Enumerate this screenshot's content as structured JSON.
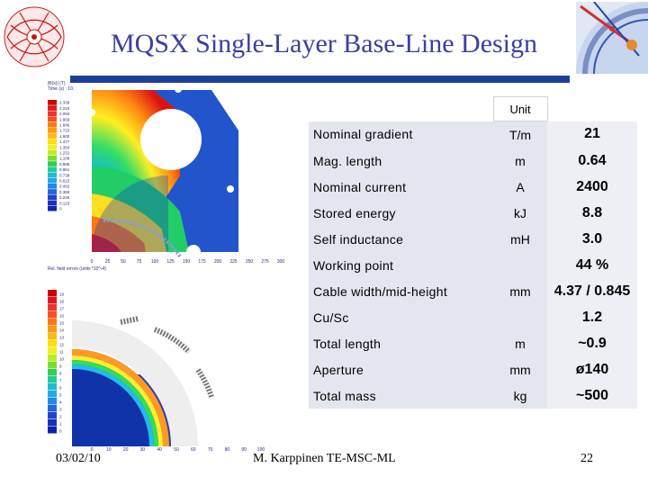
{
  "slide": {
    "title": "MQSX Single-Layer Base-Line Design"
  },
  "figure_top": {
    "legend_title": "|B(x)| (T)",
    "legend_subtitle": "Time (s) : 10.",
    "legend_values": [
      "2.339",
      "2.216",
      "2.093",
      "1.969",
      "1.846",
      "1.723",
      "1.600",
      "1.477",
      "1.354",
      "1.231",
      "1.108",
      "0.985",
      "0.861",
      "0.738",
      "0.615",
      "0.492",
      "0.369",
      "0.246",
      "0.123",
      "0"
    ],
    "axis_caption": "Rel. field errors (units *10^-4)",
    "x_ticks": [
      "0",
      "25",
      "50",
      "75",
      "100",
      "125",
      "150",
      "175",
      "200",
      "225",
      "250",
      "275",
      "300"
    ]
  },
  "figure_bottom": {
    "legend_values": [
      "19",
      "18",
      "17",
      "16",
      "15",
      "14",
      "13",
      "12",
      "11",
      "10",
      "9",
      "8",
      "7",
      "6",
      "5",
      "4",
      "3",
      "2",
      "1",
      "0"
    ],
    "x_ticks": [
      "0",
      "10",
      "20",
      "30",
      "40",
      "50",
      "60",
      "70",
      "80",
      "90",
      "100"
    ]
  },
  "table": {
    "unit_header": "Unit",
    "rows": [
      {
        "name": "Nominal gradient",
        "unit": "T/m",
        "value": "21"
      },
      {
        "name": "Mag. length",
        "unit": "m",
        "value": "0.64"
      },
      {
        "name": "Nominal current",
        "unit": "A",
        "value": "2400"
      },
      {
        "name": "Stored energy",
        "unit": "kJ",
        "value": "8.8"
      },
      {
        "name": "Self inductance",
        "unit": "mH",
        "value": "3.0"
      },
      {
        "name": "Working point",
        "unit": "",
        "value": "44 %"
      },
      {
        "name": "Cable width/mid-height",
        "unit": "mm",
        "value": "4.37 / 0.845"
      },
      {
        "name": "Cu/Sc",
        "unit": "",
        "value": "1.2"
      },
      {
        "name": "Total length",
        "unit": "m",
        "value": "~0.9"
      },
      {
        "name": "Aperture",
        "unit": "mm",
        "value": "ø140"
      },
      {
        "name": "Total mass",
        "unit": "kg",
        "value": "~500"
      }
    ]
  },
  "footer": {
    "date": "03/02/10",
    "author": "M. Karppinen TE-MSC-ML",
    "page": "22"
  },
  "colors": {
    "title": "#3a3fa0",
    "rule": "#1d3f9a",
    "table_cell": "#e3e6ee"
  }
}
